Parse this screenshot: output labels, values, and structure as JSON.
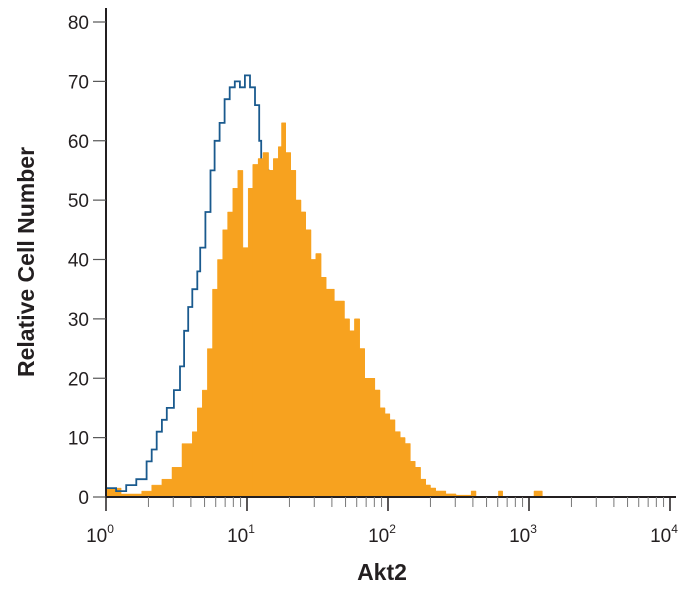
{
  "chart_data": {
    "type": "histogram",
    "xlabel": "Akt2",
    "ylabel": "Relative Cell Number",
    "x_scale": "log",
    "xlim": [
      1,
      10000
    ],
    "ylim": [
      0,
      80
    ],
    "x_ticks": [
      {
        "base": "10",
        "exp": "0",
        "value": 1
      },
      {
        "base": "10",
        "exp": "1",
        "value": 10
      },
      {
        "base": "10",
        "exp": "2",
        "value": 100
      },
      {
        "base": "10",
        "exp": "3",
        "value": 1000
      },
      {
        "base": "10",
        "exp": "4",
        "value": 10000
      }
    ],
    "y_ticks": [
      "0",
      "10",
      "20",
      "30",
      "40",
      "50",
      "60",
      "70",
      "80"
    ],
    "grid": false,
    "series": [
      {
        "style": "filled",
        "color": "#F7A21F",
        "points": [
          [
            1.0,
            1.5
          ],
          [
            1.28,
            0.5
          ],
          [
            1.79,
            1
          ],
          [
            2.11,
            2
          ],
          [
            2.49,
            3
          ],
          [
            2.94,
            5
          ],
          [
            3.46,
            9
          ],
          [
            4.09,
            11
          ],
          [
            4.44,
            15
          ],
          [
            4.82,
            18
          ],
          [
            5.24,
            25
          ],
          [
            5.69,
            35
          ],
          [
            6.18,
            40
          ],
          [
            6.72,
            45
          ],
          [
            7.29,
            48
          ],
          [
            7.93,
            52
          ],
          [
            8.61,
            55
          ],
          [
            9.36,
            42
          ],
          [
            10.2,
            52
          ],
          [
            11.0,
            56
          ],
          [
            12.0,
            57
          ],
          [
            13.0,
            58
          ],
          [
            14.2,
            55
          ],
          [
            15.4,
            57
          ],
          [
            16.7,
            59
          ],
          [
            17.6,
            63
          ],
          [
            18.8,
            58
          ],
          [
            20.4,
            55
          ],
          [
            22.2,
            50
          ],
          [
            24.1,
            48
          ],
          [
            26.1,
            45
          ],
          [
            28.4,
            40
          ],
          [
            30.8,
            41
          ],
          [
            33.5,
            37
          ],
          [
            36.4,
            35
          ],
          [
            41.6,
            33
          ],
          [
            49.1,
            30
          ],
          [
            53.3,
            28
          ],
          [
            57.9,
            30
          ],
          [
            62.9,
            25
          ],
          [
            68.4,
            20
          ],
          [
            74.3,
            20
          ],
          [
            80.6,
            18
          ],
          [
            87.6,
            15
          ],
          [
            95.1,
            14
          ],
          [
            103,
            13
          ],
          [
            112,
            11
          ],
          [
            122,
            10
          ],
          [
            132,
            9
          ],
          [
            144,
            6
          ],
          [
            156,
            5
          ],
          [
            170,
            3
          ],
          [
            185,
            2
          ],
          [
            200,
            1.5
          ],
          [
            218,
            1
          ],
          [
            257,
            0.5
          ],
          [
            303,
            0.3
          ],
          [
            389,
            1
          ],
          [
            420,
            0
          ],
          [
            499,
            0
          ],
          [
            608,
            1
          ],
          [
            650,
            0
          ],
          [
            1086,
            1
          ],
          [
            1242,
            0
          ]
        ]
      },
      {
        "style": "outline",
        "color": "#1A5A8E",
        "points": [
          [
            1.0,
            1.5
          ],
          [
            1.18,
            1
          ],
          [
            1.39,
            2
          ],
          [
            1.64,
            3
          ],
          [
            1.94,
            6
          ],
          [
            2.11,
            8
          ],
          [
            2.29,
            11
          ],
          [
            2.49,
            13
          ],
          [
            2.7,
            15
          ],
          [
            3.03,
            18
          ],
          [
            3.35,
            22
          ],
          [
            3.58,
            28
          ],
          [
            3.83,
            32
          ],
          [
            4.09,
            35
          ],
          [
            4.44,
            38
          ],
          [
            4.66,
            42
          ],
          [
            5.07,
            48
          ],
          [
            5.51,
            55
          ],
          [
            5.89,
            60
          ],
          [
            6.39,
            63
          ],
          [
            6.94,
            67
          ],
          [
            7.54,
            69
          ],
          [
            8.19,
            70
          ],
          [
            8.9,
            69
          ],
          [
            9.67,
            71
          ],
          [
            10.5,
            69
          ],
          [
            11.4,
            66
          ],
          [
            12.2,
            60
          ],
          [
            12.6,
            55
          ],
          [
            14.2,
            45
          ],
          [
            16.7,
            30
          ],
          [
            21.4,
            15
          ],
          [
            27.4,
            5
          ],
          [
            35.2,
            1
          ],
          [
            49.0,
            0
          ]
        ]
      }
    ]
  }
}
